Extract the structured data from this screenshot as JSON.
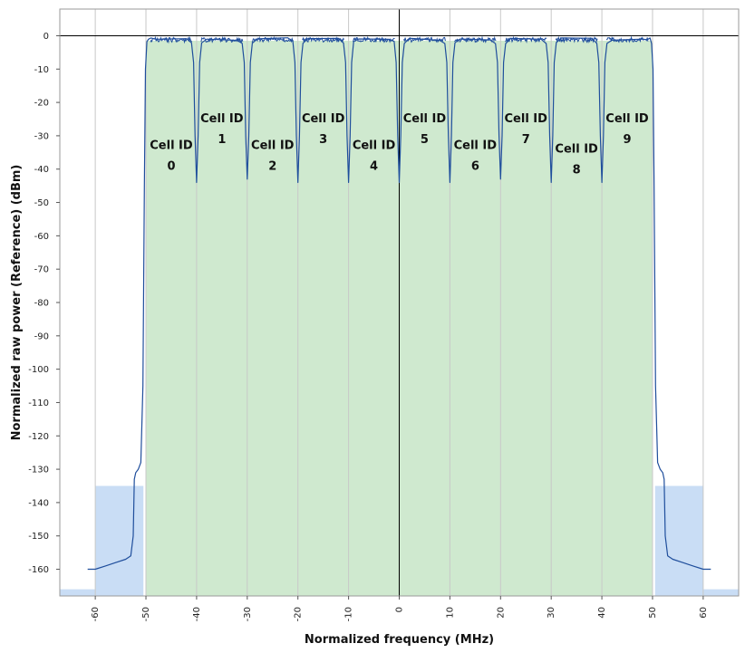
{
  "chart_data": {
    "type": "line",
    "title": "",
    "xlabel": "Normalized frequency (MHz)",
    "ylabel": "Normalized raw power (Reference) (dBm)",
    "xlim": [
      -67,
      67
    ],
    "ylim": [
      -168,
      8
    ],
    "xticks": [
      -60,
      -50,
      -40,
      -30,
      -20,
      -10,
      0,
      10,
      20,
      30,
      40,
      50,
      60
    ],
    "yticks": [
      0,
      -10,
      -20,
      -30,
      -40,
      -50,
      -60,
      -70,
      -80,
      -90,
      -100,
      -110,
      -120,
      -130,
      -140,
      -150,
      -160
    ],
    "grid": true,
    "colors": {
      "line": "#1f4e9c",
      "carrier_fill": "#cfe9cf",
      "mask_fill": "#c9ddf5",
      "grid": "#c8c8c8",
      "zero_axis": "#000000"
    },
    "carriers": [
      {
        "label1": "Cell ID",
        "label2": "0",
        "x_start": -50,
        "x_end": -40,
        "label_y": -34
      },
      {
        "label1": "Cell ID",
        "label2": "1",
        "x_start": -40,
        "x_end": -30,
        "label_y": -26
      },
      {
        "label1": "Cell ID",
        "label2": "2",
        "x_start": -30,
        "x_end": -20,
        "label_y": -34
      },
      {
        "label1": "Cell ID",
        "label2": "3",
        "x_start": -20,
        "x_end": -10,
        "label_y": -26
      },
      {
        "label1": "Cell ID",
        "label2": "4",
        "x_start": -10,
        "x_end": 0,
        "label_y": -34
      },
      {
        "label1": "Cell ID",
        "label2": "5",
        "x_start": 0,
        "x_end": 10,
        "label_y": -26
      },
      {
        "label1": "Cell ID",
        "label2": "6",
        "x_start": 10,
        "x_end": 20,
        "label_y": -34
      },
      {
        "label1": "Cell ID",
        "label2": "7",
        "x_start": 20,
        "x_end": 30,
        "label_y": -26
      },
      {
        "label1": "Cell ID",
        "label2": "8",
        "x_start": 30,
        "x_end": 40,
        "label_y": -35
      },
      {
        "label1": "Cell ID",
        "label2": "9",
        "x_start": 40,
        "x_end": 50,
        "label_y": -26
      }
    ],
    "mask_regions": [
      {
        "x_start": -67,
        "x_end": -60,
        "y_top": -166
      },
      {
        "x_start": -60,
        "x_end": -50.5,
        "y_top": -135
      },
      {
        "x_start": 50.5,
        "x_end": 60,
        "y_top": -135
      },
      {
        "x_start": 60,
        "x_end": 67,
        "y_top": -166
      }
    ],
    "series": [
      {
        "x": [
          -61.5,
          -60,
          -58,
          -56,
          -54,
          -53,
          -52.5,
          -52.3,
          -52,
          -51.5,
          -51,
          -50.6,
          -50.3,
          -50.1,
          -49.8,
          -49.5,
          -49,
          -48,
          -42,
          -41,
          -40.6,
          -40.3,
          -40,
          -39.7,
          -39.4,
          -39,
          -38,
          -32,
          -31,
          -30.6,
          -30.3,
          -30,
          -29.7,
          -29.4,
          -29,
          -28,
          -22,
          -21,
          -20.6,
          -20.3,
          -20,
          -19.7,
          -19.4,
          -19,
          -18,
          -12,
          -11,
          -10.6,
          -10.3,
          -10,
          -9.7,
          -9.4,
          -9,
          -8,
          -2,
          -1,
          -0.6,
          -0.3,
          0,
          0.3,
          0.6,
          1,
          2,
          8,
          9,
          9.4,
          9.7,
          10,
          10.3,
          10.6,
          11,
          12,
          18,
          19,
          19.4,
          19.7,
          20,
          20.3,
          20.6,
          21,
          22,
          28,
          29,
          29.4,
          29.7,
          30,
          30.3,
          30.6,
          31,
          32,
          38,
          39,
          39.4,
          39.7,
          40,
          40.3,
          40.6,
          41,
          42,
          48,
          49,
          49.5,
          49.8,
          50.1,
          50.3,
          50.6,
          51,
          51.5,
          52,
          52.3,
          52.5,
          53,
          54,
          56,
          58,
          60,
          61.5
        ],
        "y": [
          -160,
          -160,
          -159,
          -158,
          -157,
          -156,
          -150,
          -133,
          -131,
          -130,
          -128,
          -105,
          -45,
          -10,
          -2,
          -1,
          -1,
          -1,
          -1,
          -2,
          -8,
          -30,
          -44,
          -30,
          -8,
          -2,
          -1,
          -1,
          -2,
          -8,
          -30,
          -43,
          -30,
          -8,
          -2,
          -1,
          -1,
          -2,
          -8,
          -30,
          -44,
          -30,
          -8,
          -2,
          -1,
          -1,
          -2,
          -8,
          -30,
          -44,
          -30,
          -8,
          -2,
          -1,
          -1,
          -2,
          -8,
          -30,
          -44,
          -30,
          -8,
          -2,
          -1,
          -1,
          -2,
          -8,
          -30,
          -44,
          -30,
          -8,
          -2,
          -1,
          -1,
          -2,
          -8,
          -30,
          -43,
          -30,
          -8,
          -2,
          -1,
          -1,
          -2,
          -8,
          -30,
          -44,
          -30,
          -8,
          -2,
          -1,
          -1,
          -2,
          -8,
          -30,
          -44,
          -30,
          -8,
          -2,
          -1,
          -1,
          -1,
          -1,
          -2,
          -10,
          -45,
          -105,
          -128,
          -130,
          -131,
          -133,
          -150,
          -156,
          -157,
          -158,
          -159,
          -160,
          -160
        ]
      }
    ]
  }
}
